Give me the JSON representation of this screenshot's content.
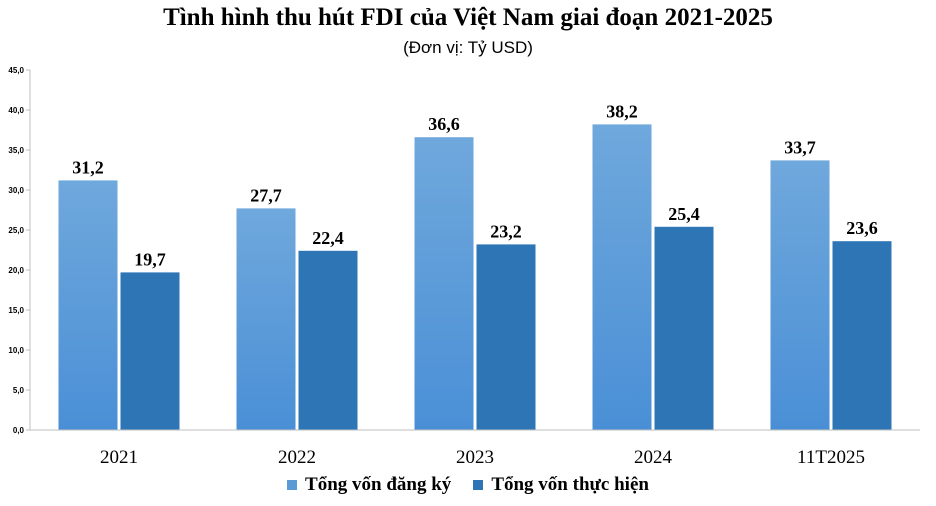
{
  "chart_data": {
    "type": "bar",
    "title": "Tình hình thu hút FDI của Việt Nam giai đoạn 2021-2025",
    "subtitle": "(Đơn vị: Tỷ USD)",
    "categories": [
      "2021",
      "2022",
      "2023",
      "2024",
      "11T2025"
    ],
    "series": [
      {
        "name": "Tổng vốn đăng ký",
        "values": [
          31.2,
          27.7,
          36.6,
          38.2,
          33.7
        ],
        "labels": [
          "31,2",
          "27,7",
          "36,6",
          "38,2",
          "33,7"
        ],
        "color": "#5b9bd5"
      },
      {
        "name": "Tổng vốn thực hiện",
        "values": [
          19.7,
          22.4,
          23.2,
          25.4,
          23.6
        ],
        "labels": [
          "19,7",
          "22,4",
          "23,2",
          "25,4",
          "23,6"
        ],
        "color": "#2e75b6"
      }
    ],
    "yticks": [
      "0,0",
      "5,0",
      "10,0",
      "15,0",
      "20,0",
      "25,0",
      "30,0",
      "35,0",
      "40,0",
      "45,0"
    ],
    "ylim": [
      0,
      45
    ],
    "grid": false,
    "legend": "bottom"
  }
}
